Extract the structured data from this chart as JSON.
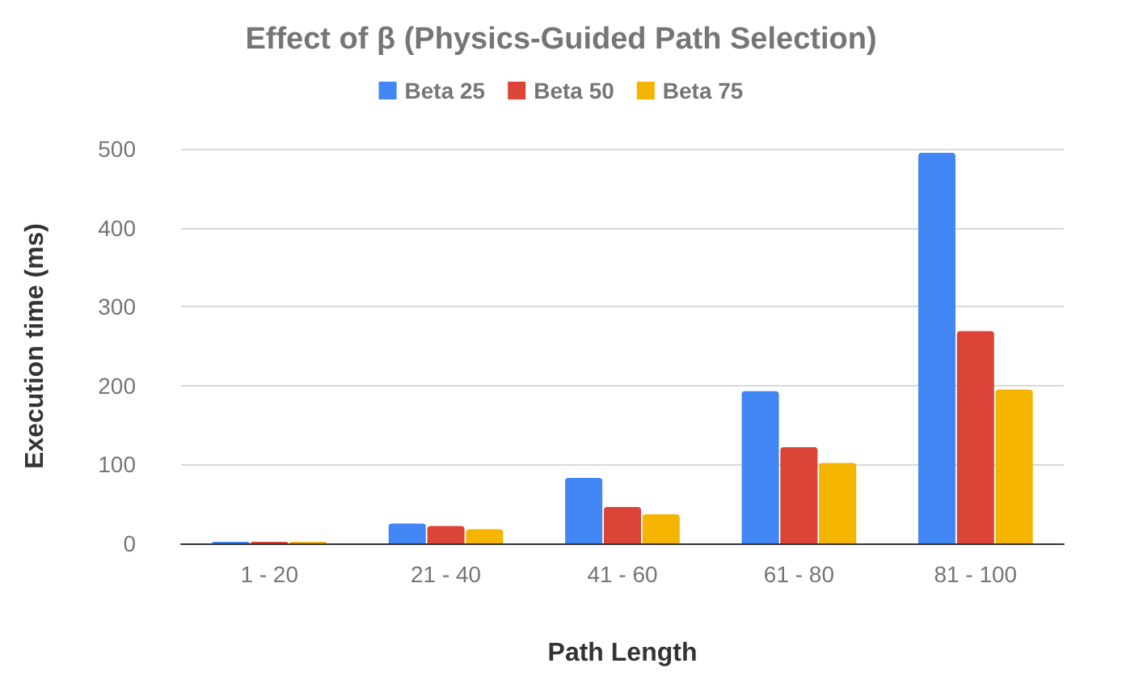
{
  "chart_data": {
    "type": "bar",
    "title": "Effect of β (Physics-Guided Path Selection)",
    "xlabel": "Path Length",
    "ylabel": "Execution time (ms)",
    "categories": [
      "1 - 20",
      "21 - 40",
      "41 - 60",
      "61 - 80",
      "81 - 100"
    ],
    "series": [
      {
        "name": "Beta 25",
        "color": "#4285f4",
        "values": [
          2,
          25,
          83,
          193,
          495
        ]
      },
      {
        "name": "Beta 50",
        "color": "#db4437",
        "values": [
          2,
          22,
          46,
          122,
          269
        ]
      },
      {
        "name": "Beta 75",
        "color": "#f4b400",
        "values": [
          2,
          18,
          37,
          102,
          195
        ]
      }
    ],
    "ylim": [
      0,
      500
    ],
    "yticks": [
      0,
      100,
      200,
      300,
      400,
      500
    ],
    "grid": "y",
    "legend": "top"
  }
}
